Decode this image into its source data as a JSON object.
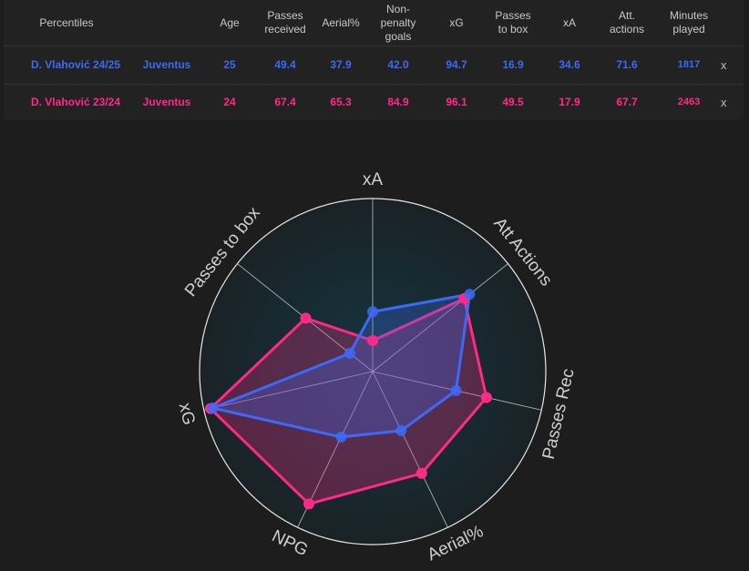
{
  "table": {
    "headers": [
      "Percentiles",
      "Age",
      "Passes\nreceived",
      "Aerial%",
      "Non-\npenalty\ngoals",
      "xG",
      "Passes\nto box",
      "xA",
      "Att.\nactions",
      "Minutes\nplayed"
    ],
    "rows": [
      {
        "player": "D. Vlahović 24/25",
        "team": "Juventus",
        "age": "25",
        "passes_received": "49.4",
        "aerial": "37.9",
        "npg": "42.0",
        "xg": "94.7",
        "passes_to_box": "16.9",
        "xa": "34.6",
        "att_actions": "71.6",
        "minutes": "1817",
        "color": "#3d6af5",
        "remove": "x"
      },
      {
        "player": "D. Vlahović 23/24",
        "team": "Juventus",
        "age": "24",
        "passes_received": "67.4",
        "aerial": "65.3",
        "npg": "84.9",
        "xg": "96.1",
        "passes_to_box": "49.5",
        "xa": "17.9",
        "att_actions": "67.7",
        "minutes": "2463",
        "color": "#ff2a88",
        "remove": "x"
      }
    ]
  },
  "chart_data": {
    "type": "radar",
    "axes": [
      "xA",
      "Att Actions",
      "Passes Rec",
      "Aerial%",
      "NPG",
      "xG",
      "Passes to box"
    ],
    "range": [
      0,
      100
    ],
    "grid": false,
    "series": [
      {
        "name": "D. Vlahović 23/24",
        "color": "#ff2a88",
        "values": [
          17.9,
          67.7,
          67.4,
          65.3,
          84.9,
          96.1,
          49.5
        ]
      },
      {
        "name": "D. Vlahović 24/25",
        "color": "#3d6af5",
        "values": [
          34.6,
          71.6,
          49.4,
          37.9,
          42.0,
          94.7,
          16.9
        ]
      }
    ]
  }
}
